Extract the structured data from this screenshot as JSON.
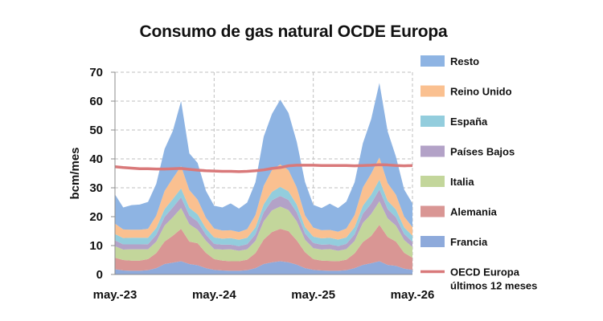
{
  "chart_data": {
    "type": "area",
    "stacked": true,
    "title": "Consumo de gas natural OCDE Europa",
    "xlabel": "",
    "ylabel": "bcm/mes",
    "ylim": [
      0,
      70
    ],
    "yticks": [
      0,
      10,
      20,
      30,
      40,
      50,
      60,
      70
    ],
    "x": [
      "may.-23",
      "jun.-23",
      "jul.-23",
      "ago.-23",
      "sep.-23",
      "oct.-23",
      "nov.-23",
      "dic.-23",
      "ene.-24",
      "feb.-24",
      "mar.-24",
      "abr.-24",
      "may.-24",
      "jun.-24",
      "jul.-24",
      "ago.-24",
      "sep.-24",
      "oct.-24",
      "nov.-24",
      "dic.-24",
      "ene.-25",
      "feb.-25",
      "mar.-25",
      "abr.-25",
      "may.-25",
      "jun.-25",
      "jul.-25",
      "ago.-25",
      "sep.-25",
      "oct.-25",
      "nov.-25",
      "dic.-25",
      "ene.-26",
      "feb.-26",
      "mar.-26",
      "abr.-26",
      "may.-26"
    ],
    "xtick_labels": [
      "may.-23",
      "may.-24",
      "may.-25",
      "may.-26"
    ],
    "grid": true,
    "legend_position": "right",
    "series": [
      {
        "name": "Francia",
        "kind": "area",
        "color": "#8eaadb",
        "values": [
          1.8,
          1.4,
          1.3,
          1.3,
          1.5,
          2.2,
          3.6,
          4.1,
          4.6,
          3.6,
          3.2,
          2.2,
          1.6,
          1.4,
          1.3,
          1.3,
          1.5,
          2.2,
          3.6,
          4.2,
          4.6,
          4.2,
          3.4,
          2.2,
          1.6,
          1.4,
          1.3,
          1.3,
          1.5,
          2.2,
          3.3,
          3.9,
          4.6,
          3.3,
          3.0,
          2.0,
          1.6
        ]
      },
      {
        "name": "Alemania",
        "kind": "area",
        "color": "#d99694",
        "values": [
          4.0,
          3.6,
          3.5,
          3.5,
          3.8,
          5.2,
          7.8,
          9.3,
          11.2,
          7.8,
          7.6,
          5.3,
          3.7,
          3.4,
          3.3,
          3.3,
          3.6,
          5.2,
          8.5,
          10.5,
          11.2,
          10.8,
          8.4,
          5.5,
          3.7,
          3.4,
          3.4,
          3.3,
          3.6,
          5.1,
          7.9,
          9.4,
          12.6,
          9.7,
          8.4,
          5.5,
          4.2
        ]
      },
      {
        "name": "Italia",
        "kind": "area",
        "color": "#c3d69b",
        "values": [
          4.0,
          3.6,
          3.9,
          3.9,
          3.4,
          4.0,
          5.5,
          6.4,
          7.2,
          6.0,
          4.7,
          4.2,
          3.5,
          3.8,
          4.1,
          3.6,
          3.6,
          4.2,
          6.3,
          7.5,
          7.7,
          7.3,
          6.6,
          4.3,
          3.8,
          3.8,
          4.1,
          3.6,
          3.7,
          4.3,
          6.6,
          7.6,
          8.1,
          6.4,
          5.5,
          4.4,
          3.7
        ]
      },
      {
        "name": "Países Bajos",
        "kind": "area",
        "color": "#b3a2c7",
        "values": [
          2.0,
          1.8,
          1.7,
          1.7,
          1.8,
          2.3,
          3.0,
          3.4,
          3.7,
          3.0,
          2.8,
          2.1,
          1.8,
          1.7,
          1.6,
          1.6,
          1.8,
          2.3,
          3.1,
          3.5,
          3.7,
          3.5,
          3.1,
          2.2,
          1.8,
          1.7,
          1.6,
          1.6,
          1.8,
          2.3,
          3.2,
          3.6,
          4.1,
          3.2,
          2.9,
          2.1,
          1.8
        ]
      },
      {
        "name": "España",
        "kind": "area",
        "color": "#93cddd",
        "values": [
          2.2,
          2.2,
          2.3,
          2.3,
          2.2,
          2.4,
          2.7,
          2.9,
          3.1,
          2.7,
          2.5,
          2.2,
          2.2,
          2.1,
          2.3,
          2.2,
          2.2,
          2.4,
          2.8,
          2.9,
          3.1,
          3.0,
          2.7,
          2.2,
          2.2,
          2.2,
          2.3,
          2.3,
          2.2,
          2.5,
          2.8,
          3.1,
          3.4,
          2.9,
          2.7,
          2.3,
          2.1
        ]
      },
      {
        "name": "Reino Unido",
        "kind": "area",
        "color": "#fac090",
        "values": [
          3.6,
          3.0,
          2.8,
          2.8,
          3.1,
          4.3,
          6.3,
          7.2,
          7.7,
          6.1,
          5.1,
          3.7,
          3.1,
          2.8,
          2.7,
          2.7,
          3.0,
          4.3,
          6.4,
          7.5,
          7.8,
          7.3,
          5.9,
          4.0,
          3.1,
          2.8,
          2.7,
          2.7,
          3.1,
          4.2,
          6.3,
          7.3,
          7.7,
          6.1,
          5.1,
          3.7,
          3.0
        ]
      },
      {
        "name": "Resto",
        "kind": "area",
        "color": "#8eb4e3",
        "values": [
          10.1,
          7.6,
          8.5,
          8.7,
          9.3,
          11.0,
          14.5,
          16.4,
          22.5,
          12.7,
          12.7,
          9.3,
          7.9,
          8.0,
          9.3,
          8.1,
          9.2,
          11.3,
          17.0,
          19.5,
          22.4,
          19.8,
          15.8,
          11.6,
          7.9,
          7.7,
          9.1,
          8.2,
          9.3,
          11.3,
          15.3,
          18.8,
          25.8,
          17.9,
          13.2,
          9.4,
          8.2
        ]
      },
      {
        "name": "OECD Europa últimos 12 meses",
        "kind": "line",
        "color": "#d9797a",
        "values": [
          37.3,
          37.0,
          36.8,
          36.6,
          36.6,
          36.5,
          36.5,
          36.6,
          36.7,
          36.4,
          36.1,
          35.9,
          35.8,
          35.7,
          35.7,
          35.6,
          35.7,
          35.9,
          36.2,
          36.7,
          37.0,
          37.6,
          37.8,
          37.8,
          37.8,
          37.7,
          37.7,
          37.7,
          37.7,
          37.6,
          37.7,
          37.8,
          38.0,
          37.9,
          37.7,
          37.6,
          37.7
        ]
      }
    ],
    "legend_entries": [
      {
        "label": "Resto",
        "color": "#8eb4e3",
        "kind": "area"
      },
      {
        "label": "Reino Unido",
        "color": "#fac090",
        "kind": "area"
      },
      {
        "label": "España",
        "color": "#93cddd",
        "kind": "area"
      },
      {
        "label": "Países Bajos",
        "color": "#b3a2c7",
        "kind": "area"
      },
      {
        "label": "Italia",
        "color": "#c3d69b",
        "kind": "area"
      },
      {
        "label": "Alemania",
        "color": "#d99694",
        "kind": "area"
      },
      {
        "label": "Francia",
        "color": "#8eaadb",
        "kind": "area"
      },
      {
        "label": "OECD Europa",
        "label_line2": "últimos 12 meses",
        "color": "#d9797a",
        "kind": "line"
      }
    ]
  }
}
